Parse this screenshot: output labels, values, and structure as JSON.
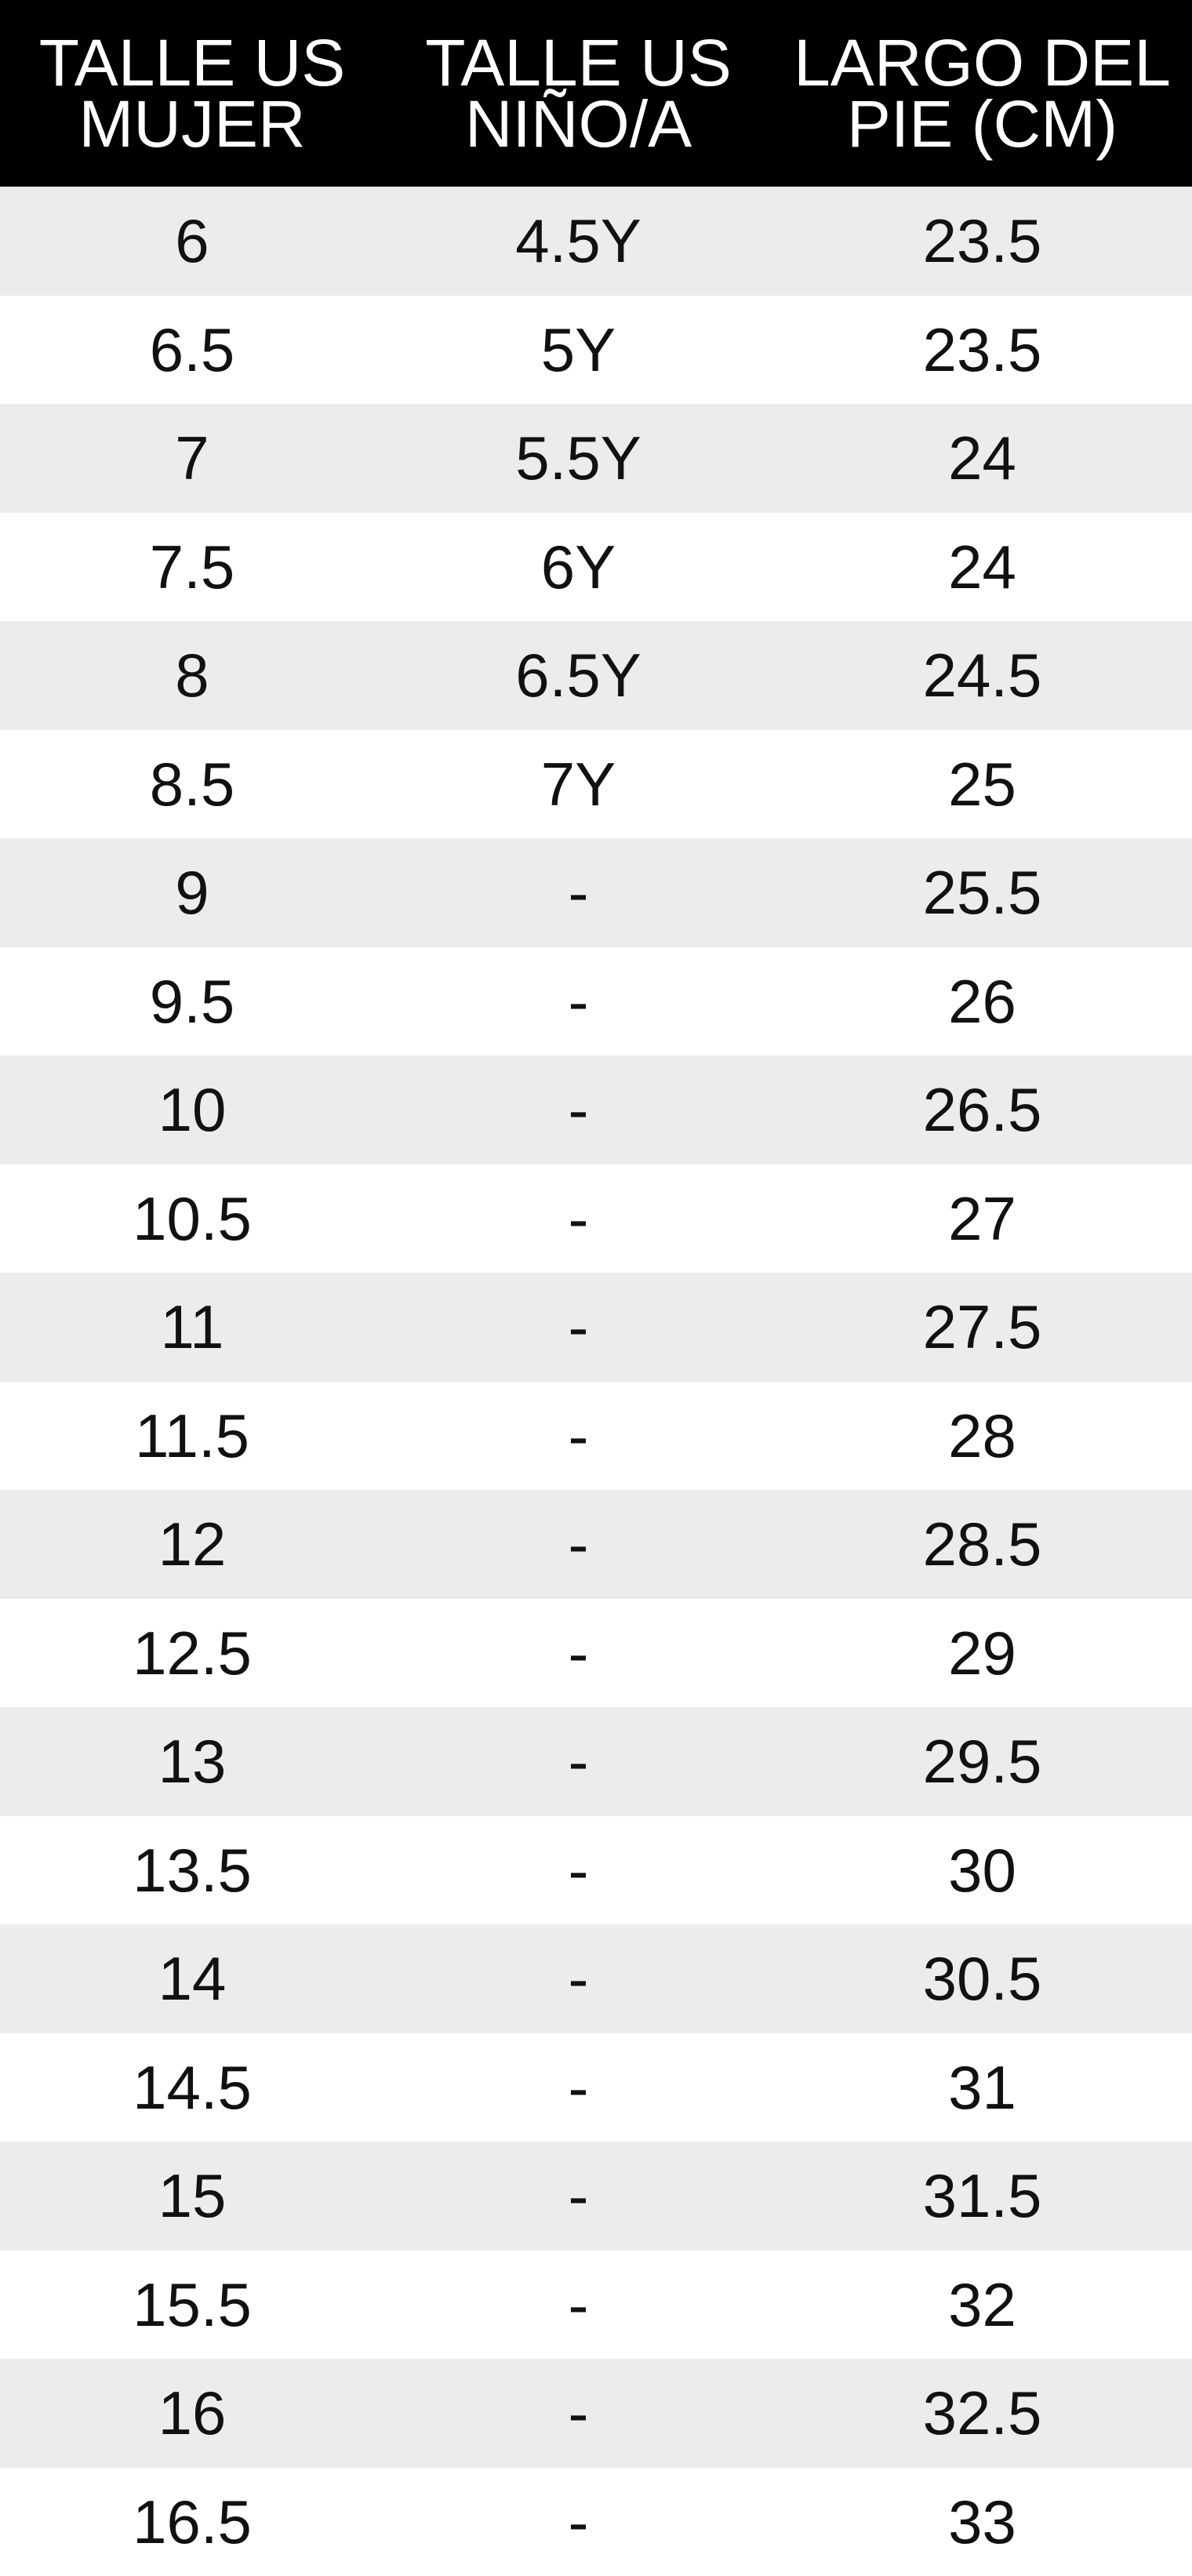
{
  "table": {
    "headers": [
      [
        "TALLE US",
        "MUJER"
      ],
      [
        "TALLE US",
        "NIÑO/A"
      ],
      [
        "LARGO DEL",
        "PIE (CM)"
      ]
    ],
    "rows": [
      [
        "6",
        "4.5Y",
        "23.5"
      ],
      [
        "6.5",
        "5Y",
        "23.5"
      ],
      [
        "7",
        "5.5Y",
        "24"
      ],
      [
        "7.5",
        "6Y",
        "24"
      ],
      [
        "8",
        "6.5Y",
        "24.5"
      ],
      [
        "8.5",
        "7Y",
        "25"
      ],
      [
        "9",
        "-",
        "25.5"
      ],
      [
        "9.5",
        "-",
        "26"
      ],
      [
        "10",
        "-",
        "26.5"
      ],
      [
        "10.5",
        "-",
        "27"
      ],
      [
        "11",
        "-",
        "27.5"
      ],
      [
        "11.5",
        "-",
        "28"
      ],
      [
        "12",
        "-",
        "28.5"
      ],
      [
        "12.5",
        "-",
        "29"
      ],
      [
        "13",
        "-",
        "29.5"
      ],
      [
        "13.5",
        "-",
        "30"
      ],
      [
        "14",
        "-",
        "30.5"
      ],
      [
        "14.5",
        "-",
        "31"
      ],
      [
        "15",
        "-",
        "31.5"
      ],
      [
        "15.5",
        "-",
        "32"
      ],
      [
        "16",
        "-",
        "32.5"
      ],
      [
        "16.5",
        "-",
        "33"
      ]
    ]
  },
  "colors": {
    "header_background": "#000000",
    "header_text": "#ffffff",
    "row_shaded": "#ececee",
    "row_plain": "#ffffff",
    "body_text": "#111111"
  }
}
